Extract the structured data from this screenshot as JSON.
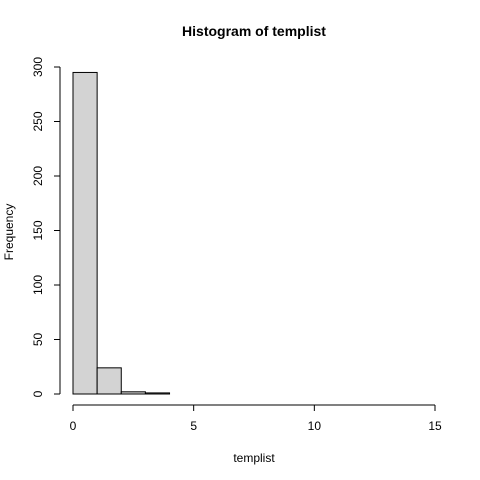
{
  "chart_data": {
    "type": "bar",
    "title": "Histogram of templist",
    "xlabel": "templist",
    "ylabel": "Frequency",
    "bin_width": 1,
    "bins": [
      {
        "start": 0,
        "end": 1,
        "count": 295
      },
      {
        "start": 1,
        "end": 2,
        "count": 24
      },
      {
        "start": 2,
        "end": 3,
        "count": 2
      },
      {
        "start": 3,
        "end": 4,
        "count": 1
      },
      {
        "start": 4,
        "end": 5,
        "count": 0
      },
      {
        "start": 5,
        "end": 6,
        "count": 0
      },
      {
        "start": 6,
        "end": 7,
        "count": 0
      },
      {
        "start": 7,
        "end": 8,
        "count": 0
      },
      {
        "start": 8,
        "end": 9,
        "count": 0
      },
      {
        "start": 9,
        "end": 10,
        "count": 0
      },
      {
        "start": 10,
        "end": 11,
        "count": 0
      },
      {
        "start": 11,
        "end": 12,
        "count": 0
      },
      {
        "start": 12,
        "end": 13,
        "count": 0
      },
      {
        "start": 13,
        "end": 14,
        "count": 0
      },
      {
        "start": 14,
        "end": 15,
        "count": 0
      }
    ],
    "xlim": [
      0,
      15
    ],
    "ylim": [
      0,
      300
    ],
    "xticks": [
      0,
      5,
      10,
      15
    ],
    "yticks": [
      0,
      50,
      100,
      150,
      200,
      250,
      300
    ],
    "bar_color": "#d3d3d3",
    "grid": false,
    "legend": "none"
  }
}
